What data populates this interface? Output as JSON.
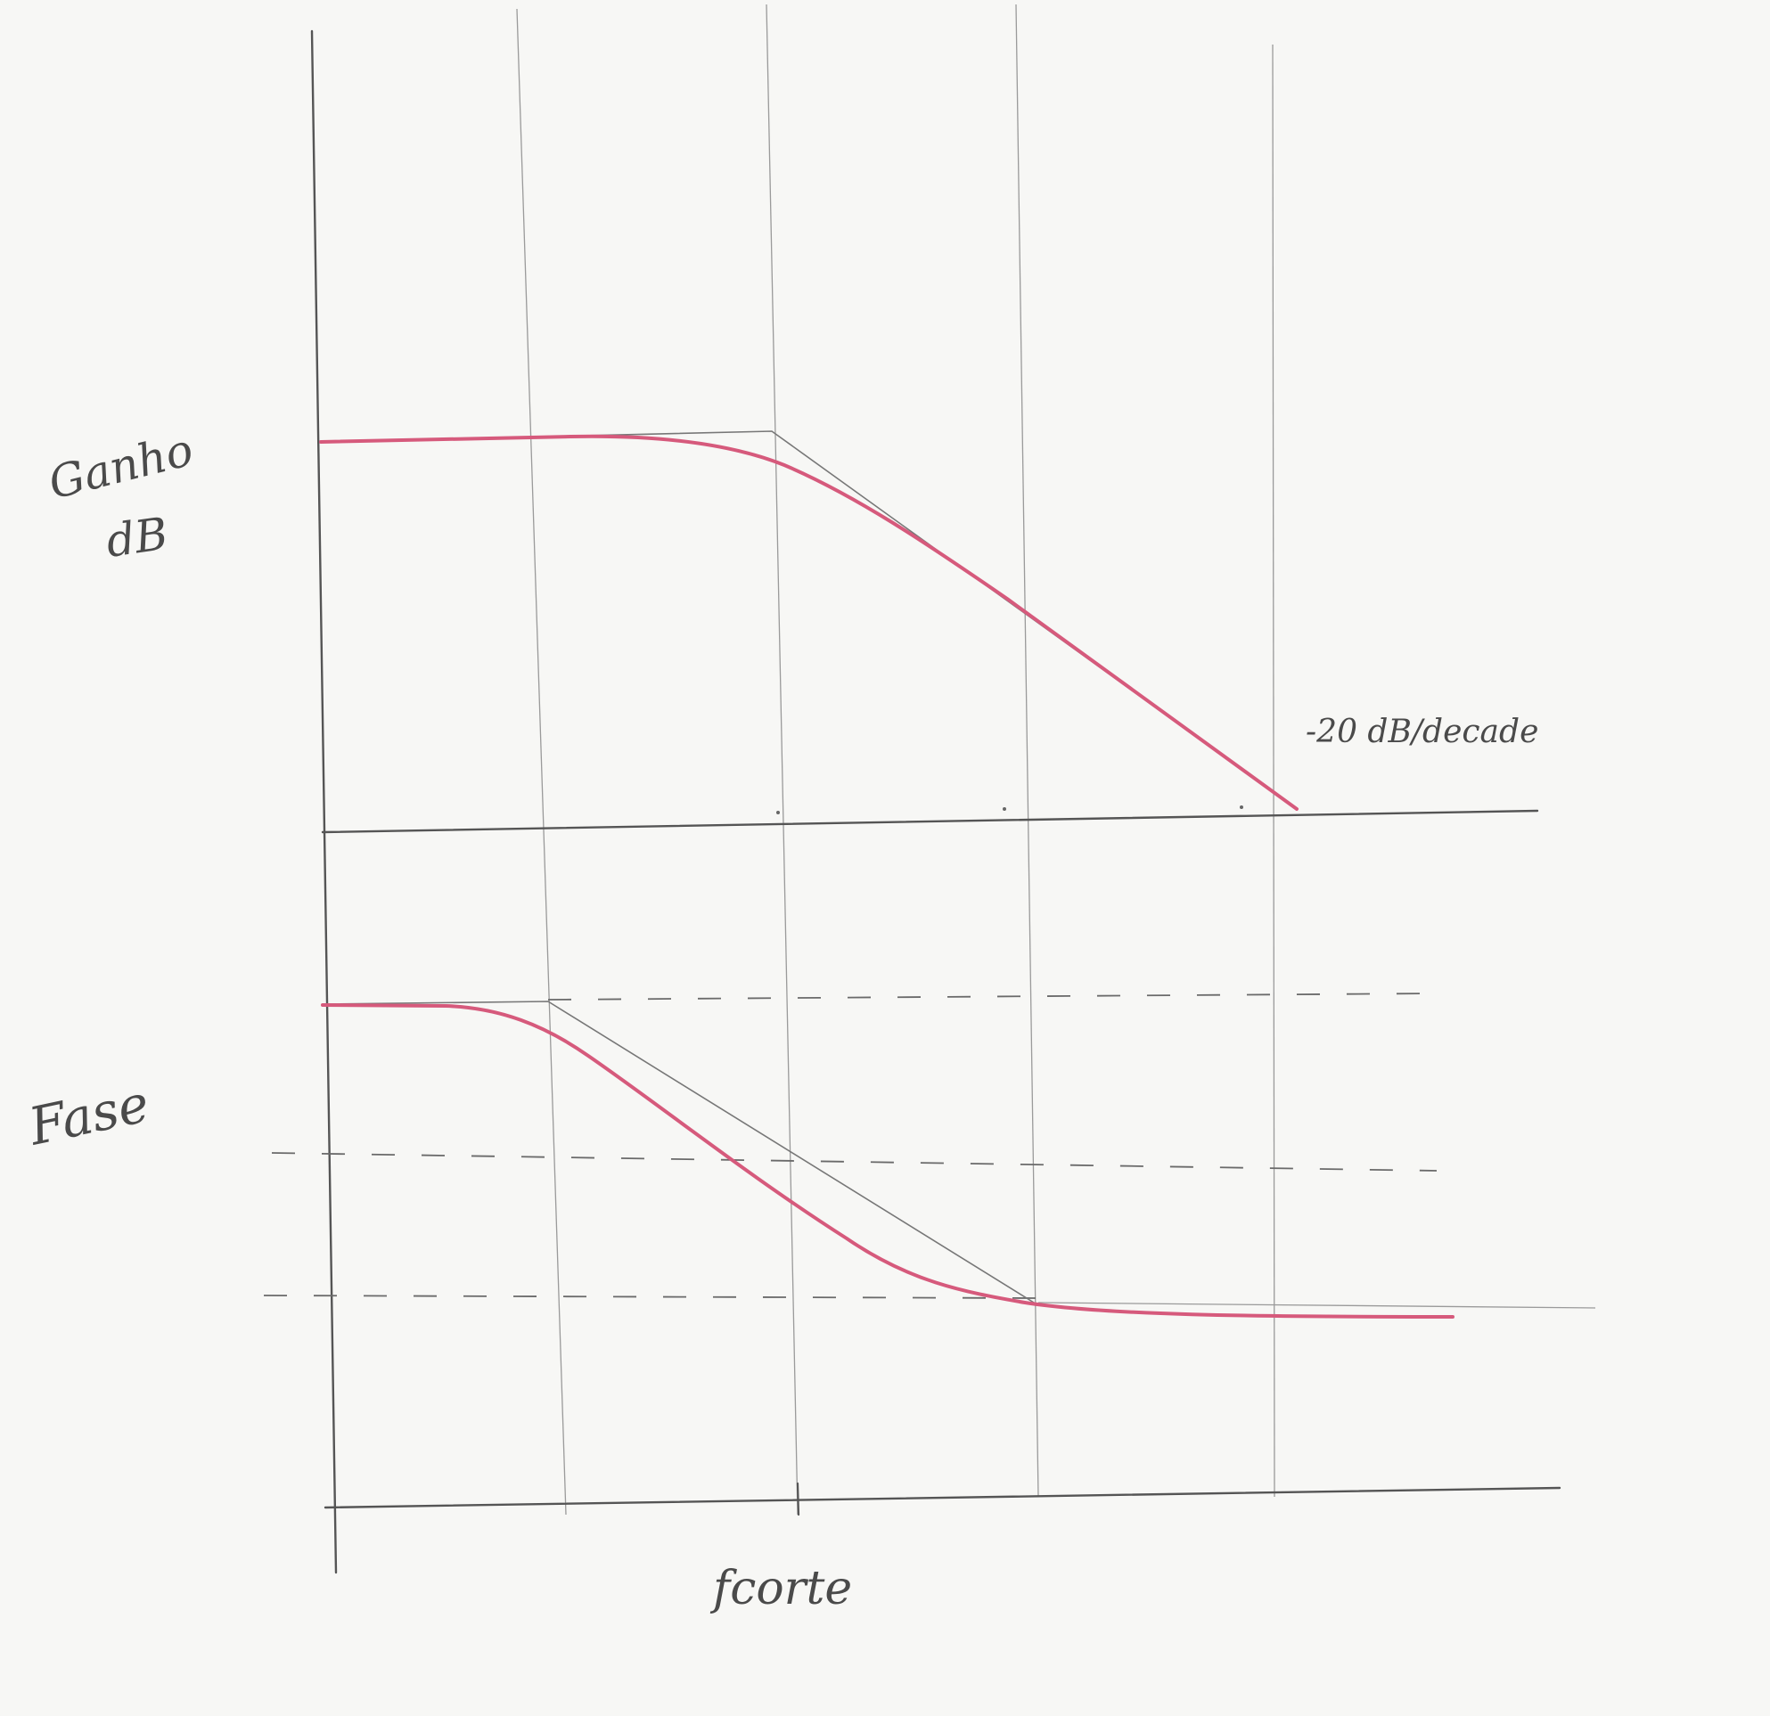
{
  "labels": {
    "gain_line1": "Ganho",
    "gain_line2": "dB",
    "phase": "Fase",
    "slope": "-20 dB/decade",
    "cutoff": "fcorte"
  },
  "colors": {
    "paper": "#f7f7f5",
    "pencil": "#555555",
    "curve": "#d65a7c"
  }
}
